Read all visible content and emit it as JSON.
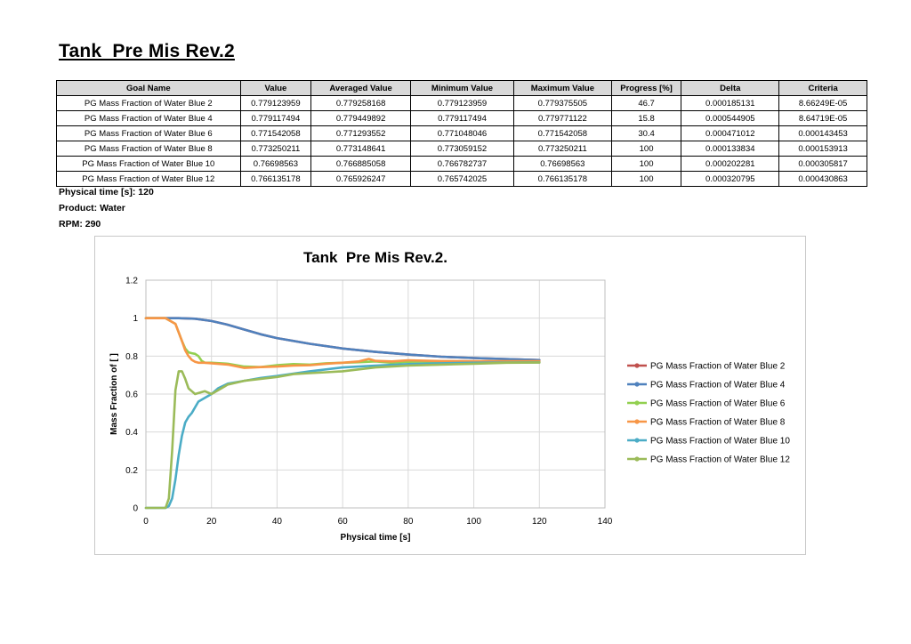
{
  "document": {
    "title": "Tank  Pre Mis Rev.2",
    "meta": [
      {
        "label": "Physical time [s]: 120"
      },
      {
        "label": "Product: Water"
      },
      {
        "label": "RPM: 290"
      }
    ]
  },
  "goals_table": {
    "headers": [
      "Goal Name",
      "Value",
      "Averaged Value",
      "Minimum Value",
      "Maximum Value",
      "Progress [%]",
      "Delta",
      "Criteria"
    ],
    "rows": [
      [
        "PG Mass Fraction of Water Blue 2",
        "0.779123959",
        "0.779258168",
        "0.779123959",
        "0.779375505",
        "46.7",
        "0.000185131",
        "8.66249E-05"
      ],
      [
        "PG Mass Fraction of Water Blue 4",
        "0.779117494",
        "0.779449892",
        "0.779117494",
        "0.779771122",
        "15.8",
        "0.000544905",
        "8.64719E-05"
      ],
      [
        "PG Mass Fraction of Water Blue 6",
        "0.771542058",
        "0.771293552",
        "0.771048046",
        "0.771542058",
        "30.4",
        "0.000471012",
        "0.000143453"
      ],
      [
        "PG Mass Fraction of Water Blue 8",
        "0.773250211",
        "0.773148641",
        "0.773059152",
        "0.773250211",
        "100",
        "0.000133834",
        "0.000153913"
      ],
      [
        "PG Mass Fraction of Water Blue 10",
        "0.76698563",
        "0.766885058",
        "0.766782737",
        "0.76698563",
        "100",
        "0.000202281",
        "0.000305817"
      ],
      [
        "PG Mass Fraction of Water Blue 12",
        "0.766135178",
        "0.765926247",
        "0.765742025",
        "0.766135178",
        "100",
        "0.000320795",
        "0.000430863"
      ]
    ]
  },
  "chart_data": {
    "type": "line",
    "title": "Tank  Pre Mis Rev.2.",
    "xlabel": "Physical time [s]",
    "ylabel": "Mass Fraction of  [ ]",
    "xlim": [
      0,
      140
    ],
    "ylim": [
      0,
      1.2
    ],
    "xticks": [
      0,
      20,
      40,
      60,
      80,
      100,
      120,
      140
    ],
    "yticks": [
      0,
      0.2,
      0.4,
      0.6,
      0.8,
      1,
      1.2
    ],
    "grid": true,
    "legend_position": "right",
    "series": [
      {
        "name": "PG Mass Fraction of Water Blue 2",
        "color": "#c0504d",
        "x": [
          0,
          5,
          10,
          15,
          20,
          25,
          30,
          35,
          40,
          50,
          60,
          70,
          80,
          90,
          100,
          110,
          120
        ],
        "y": [
          1,
          1,
          1,
          0.997,
          0.985,
          0.965,
          0.94,
          0.915,
          0.895,
          0.865,
          0.84,
          0.822,
          0.808,
          0.797,
          0.79,
          0.784,
          0.779
        ]
      },
      {
        "name": "PG Mass Fraction of Water Blue 4",
        "color": "#4f81bd",
        "x": [
          0,
          5,
          10,
          15,
          20,
          25,
          30,
          35,
          40,
          50,
          60,
          70,
          80,
          90,
          100,
          110,
          120
        ],
        "y": [
          1,
          1,
          1,
          0.997,
          0.985,
          0.965,
          0.94,
          0.915,
          0.895,
          0.865,
          0.84,
          0.822,
          0.808,
          0.797,
          0.79,
          0.784,
          0.779
        ]
      },
      {
        "name": "PG Mass Fraction of Water Blue 6",
        "color": "#92d050",
        "x": [
          0,
          6,
          9,
          11,
          12,
          13,
          14,
          15,
          16,
          17,
          18,
          20,
          25,
          30,
          35,
          40,
          45,
          50,
          55,
          60,
          65,
          70,
          75,
          80,
          90,
          100,
          110,
          120
        ],
        "y": [
          1,
          1,
          0.97,
          0.88,
          0.84,
          0.82,
          0.815,
          0.812,
          0.8,
          0.775,
          0.765,
          0.765,
          0.76,
          0.745,
          0.742,
          0.752,
          0.758,
          0.755,
          0.762,
          0.765,
          0.768,
          0.772,
          0.765,
          0.77,
          0.772,
          0.771,
          0.771,
          0.772
        ]
      },
      {
        "name": "PG Mass Fraction of Water Blue 8",
        "color": "#f79646",
        "x": [
          0,
          6,
          9,
          11,
          12,
          13,
          14,
          15,
          16,
          18,
          20,
          25,
          30,
          35,
          40,
          45,
          50,
          55,
          60,
          65,
          68,
          70,
          75,
          80,
          90,
          100,
          110,
          120
        ],
        "y": [
          1,
          1,
          0.97,
          0.88,
          0.83,
          0.8,
          0.78,
          0.77,
          0.765,
          0.765,
          0.762,
          0.755,
          0.738,
          0.742,
          0.745,
          0.75,
          0.752,
          0.76,
          0.765,
          0.772,
          0.785,
          0.775,
          0.772,
          0.778,
          0.774,
          0.773,
          0.773,
          0.773
        ]
      },
      {
        "name": "PG Mass Fraction of Water Blue 10",
        "color": "#4bacc6",
        "x": [
          0,
          6,
          7,
          8,
          9,
          10,
          11,
          12,
          13,
          14,
          15,
          16,
          18,
          20,
          22,
          25,
          30,
          35,
          40,
          50,
          60,
          70,
          80,
          90,
          100,
          110,
          120
        ],
        "y": [
          0,
          0,
          0.01,
          0.05,
          0.15,
          0.28,
          0.38,
          0.45,
          0.48,
          0.5,
          0.53,
          0.56,
          0.58,
          0.6,
          0.63,
          0.655,
          0.67,
          0.685,
          0.695,
          0.72,
          0.74,
          0.75,
          0.758,
          0.762,
          0.765,
          0.766,
          0.767
        ]
      },
      {
        "name": "PG Mass Fraction of Water Blue 12",
        "color": "#9bbb59",
        "x": [
          0,
          6,
          7,
          8,
          9,
          10,
          11,
          12,
          13,
          14,
          15,
          16,
          18,
          20,
          22,
          25,
          30,
          35,
          40,
          45,
          50,
          55,
          60,
          70,
          80,
          90,
          100,
          110,
          120
        ],
        "y": [
          0,
          0,
          0.05,
          0.3,
          0.62,
          0.72,
          0.72,
          0.68,
          0.63,
          0.615,
          0.6,
          0.605,
          0.615,
          0.6,
          0.62,
          0.65,
          0.67,
          0.68,
          0.69,
          0.705,
          0.71,
          0.715,
          0.72,
          0.74,
          0.75,
          0.755,
          0.76,
          0.765,
          0.766
        ]
      }
    ]
  }
}
